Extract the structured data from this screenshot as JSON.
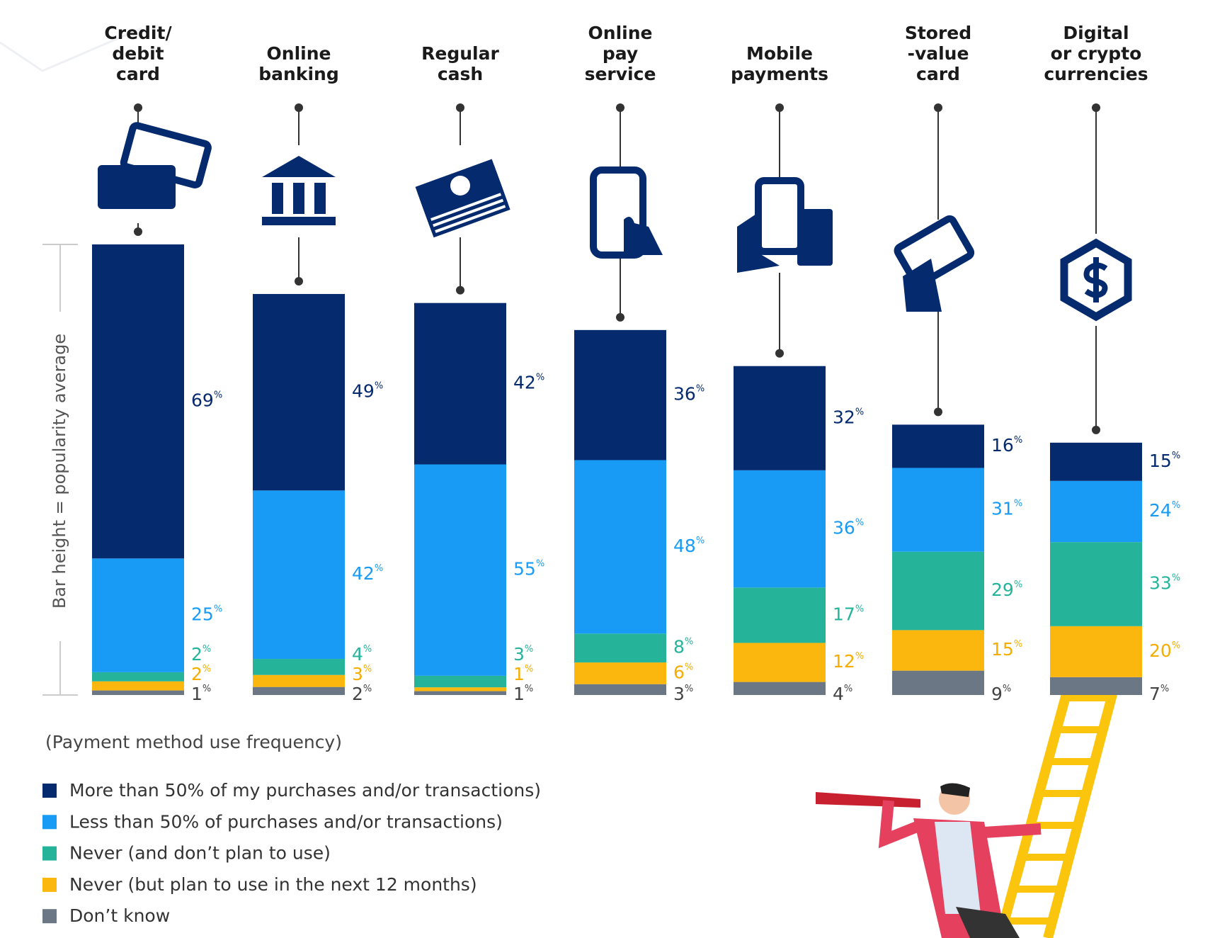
{
  "chart_data": {
    "type": "stacked-bar",
    "y_axis_label": "Bar height = popularity average",
    "legend_title": "(Payment method use frequency)",
    "unit": "%",
    "categories": [
      [
        "Credit/",
        "debit",
        "card"
      ],
      [
        "Online",
        "banking"
      ],
      [
        "Regular",
        "cash"
      ],
      [
        "Online",
        "pay",
        "service"
      ],
      [
        "Mobile",
        "payments"
      ],
      [
        "Stored",
        "-value",
        "card"
      ],
      [
        "Digital",
        "or crypto",
        "currencies"
      ]
    ],
    "bar_heights": [
      100,
      89,
      87,
      81,
      73,
      60,
      56
    ],
    "series": [
      {
        "name": "More than 50% of my purchases and/or transactions)",
        "color": "#062a6e",
        "label_color": "#062a6e",
        "values": [
          69,
          49,
          42,
          36,
          32,
          16,
          15
        ]
      },
      {
        "name": "Less than 50% of purchases and/or transactions)",
        "color": "#189bf5",
        "label_color": "#189bf5",
        "values": [
          25,
          42,
          55,
          48,
          36,
          31,
          24
        ]
      },
      {
        "name": "Never (and don’t plan to use)",
        "color": "#25b49a",
        "label_color": "#25b49a",
        "values": [
          2,
          4,
          3,
          8,
          17,
          29,
          33
        ]
      },
      {
        "name": "Never (but plan to use in the next 12 months)",
        "color": "#fbb70d",
        "label_color": "#f5ad00",
        "values": [
          2,
          3,
          1,
          6,
          12,
          15,
          20
        ]
      },
      {
        "name": "Don’t know",
        "color": "#6b7785",
        "label_color": "#444444",
        "values": [
          1,
          2,
          1,
          3,
          4,
          9,
          7
        ]
      }
    ]
  }
}
